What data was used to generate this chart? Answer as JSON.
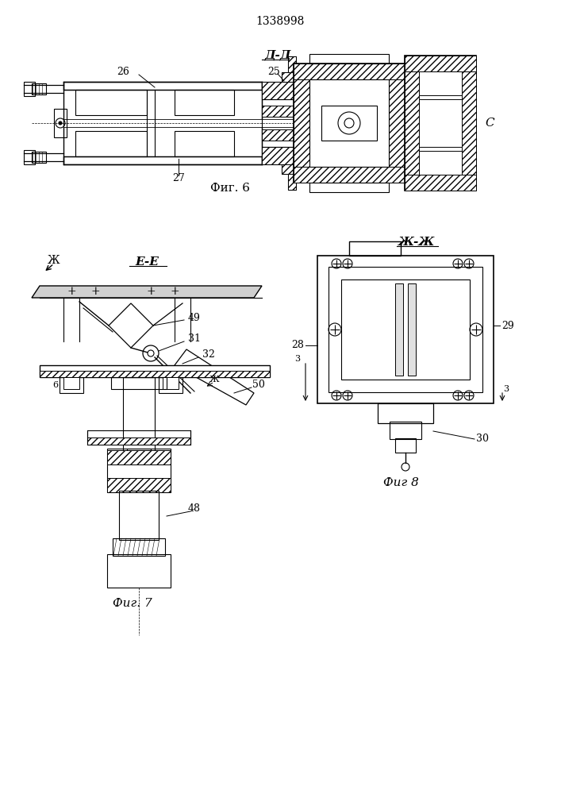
{
  "title": "1338998",
  "bg_color": "#ffffff",
  "line_color": "#000000",
  "fig6_label": "Фиг. 6",
  "fig7_label": "Фиг. 7",
  "fig8_label": "Фиг 8",
  "section_dd": "Д-Д",
  "section_ee": "E-E",
  "section_zhzh": "Ж-Ж",
  "label_26": "26",
  "label_25": "25",
  "label_27": "27",
  "label_C": "C",
  "label_49": "49",
  "label_31": "31",
  "label_32": "32",
  "label_50": "50",
  "label_6": "6",
  "label_48": "48",
  "label_zh": "Ж",
  "label_28": "28",
  "label_29": "29",
  "label_3": "3",
  "label_30": "30"
}
